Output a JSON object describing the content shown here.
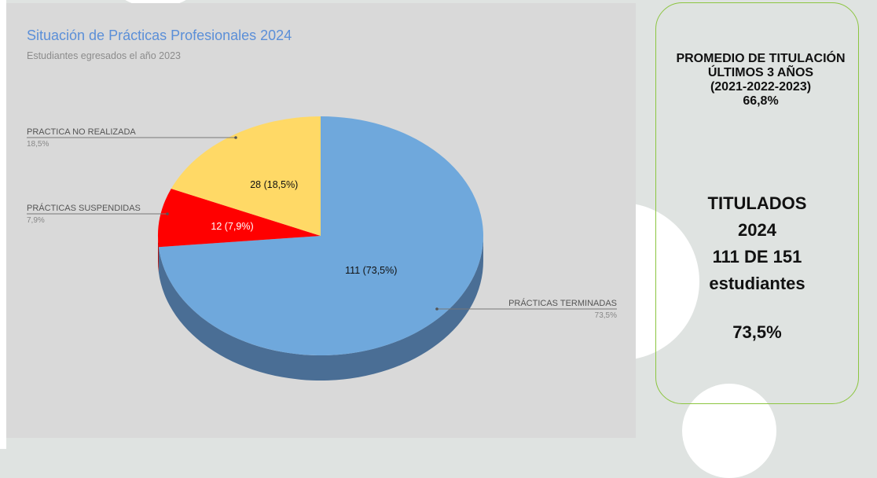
{
  "chart_data": {
    "type": "pie",
    "title": "Situación de Prácticas Profesionales 2024",
    "subtitle": "Estudiantes egresados el año 2023",
    "slices": [
      {
        "name": "PRÁCTICAS TERMINADAS",
        "value": 111,
        "percent": "73,5%",
        "label": "111 (73,5%)",
        "color": "#6fa8dc",
        "side_color": "#4a6e95"
      },
      {
        "name": "PRÁCTICAS SUSPENDIDAS",
        "value": 12,
        "percent": "7,9%",
        "label": "12 (7,9%)",
        "color": "#ff0000",
        "side_color": "#aa0000"
      },
      {
        "name": "PRACTICA NO REALIZADA",
        "value": 28,
        "percent": "18,5%",
        "label": "28 (18,5%)",
        "color": "#ffd966",
        "side_color": "#b39a47"
      }
    ]
  },
  "info": {
    "promedio_lines": [
      "PROMEDIO DE TITULACIÓN",
      "ÚLTIMOS 3 AÑOS",
      "(2021-2022-2023)",
      "66,8%"
    ],
    "titulados_lines": [
      "TITULADOS",
      "2024",
      "111 DE 151",
      "estudiantes"
    ],
    "percent": "73,5%"
  },
  "colors": {
    "accent_border": "#8cc540",
    "title": "#5b8fd8"
  }
}
